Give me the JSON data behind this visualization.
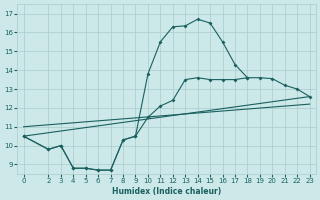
{
  "xlabel": "Humidex (Indice chaleur)",
  "bg_color": "#cce8e8",
  "grid_color": "#aacccc",
  "line_color": "#1a6060",
  "x_ticks": [
    0,
    2,
    3,
    4,
    5,
    6,
    7,
    8,
    9,
    10,
    11,
    12,
    13,
    14,
    15,
    16,
    17,
    18,
    19,
    20,
    21,
    22,
    23
  ],
  "y_ticks": [
    9,
    10,
    11,
    12,
    13,
    14,
    15,
    16,
    17
  ],
  "ylim": [
    8.5,
    17.5
  ],
  "xlim": [
    -0.5,
    23.5
  ],
  "curve1_x": [
    0,
    2,
    3,
    4,
    5,
    6,
    7,
    8,
    9,
    10,
    11,
    12,
    13,
    14,
    15,
    16,
    17,
    18,
    19,
    20,
    21
  ],
  "curve1_y": [
    10.5,
    9.8,
    10.0,
    8.8,
    8.8,
    8.7,
    8.7,
    10.3,
    10.5,
    13.8,
    15.5,
    16.3,
    16.35,
    16.7,
    16.5,
    15.5,
    14.3,
    13.6,
    null,
    null,
    null
  ],
  "curve2_x": [
    0,
    2,
    3,
    4,
    5,
    6,
    7,
    8,
    9,
    10,
    11,
    12,
    13,
    14,
    15,
    16,
    17,
    18,
    19,
    20,
    21,
    22,
    23
  ],
  "curve2_y": [
    10.5,
    9.8,
    10.0,
    8.8,
    8.8,
    8.7,
    8.7,
    10.3,
    10.5,
    11.5,
    12.1,
    12.4,
    13.5,
    13.6,
    13.5,
    13.5,
    13.5,
    13.6,
    13.6,
    13.55,
    13.2,
    13.0,
    12.6
  ],
  "line1_x": [
    0,
    23
  ],
  "line1_y": [
    10.5,
    12.6
  ],
  "line2_x": [
    0,
    23
  ],
  "line2_y": [
    11.0,
    12.2
  ]
}
